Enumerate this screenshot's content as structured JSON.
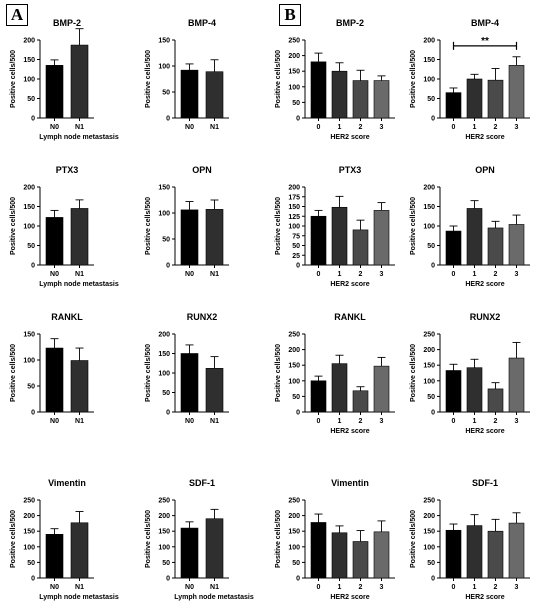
{
  "panel_labels": {
    "a": "A",
    "b": "B"
  },
  "colors": {
    "bar_dark": "#000000",
    "bar_mid": "#2f2f2f",
    "bar_gray": "#4a4a4a",
    "bar_light": "#6a6a6a",
    "axis": "#000000"
  },
  "chart_data": [
    {
      "id": "a-bmp2",
      "type": "bar",
      "title": "BMP-2",
      "xlabel": "Lymph node metastasis",
      "ylabel": "Positive cells/500",
      "categories": [
        "N0",
        "N1"
      ],
      "values": [
        135,
        187
      ],
      "errors": [
        14,
        42
      ],
      "ylim": [
        0,
        200
      ],
      "yticks": [
        0,
        50,
        100,
        150,
        200
      ]
    },
    {
      "id": "a-bmp4",
      "type": "bar",
      "title": "BMP-4",
      "xlabel": "",
      "ylabel": "Positive cells/500",
      "categories": [
        "N0",
        "N1"
      ],
      "values": [
        92,
        89
      ],
      "errors": [
        12,
        23
      ],
      "ylim": [
        0,
        150
      ],
      "yticks": [
        0,
        50,
        100,
        150
      ]
    },
    {
      "id": "b-bmp2",
      "type": "bar",
      "title": "BMP-2",
      "xlabel": "HER2 score",
      "ylabel": "Positive cells/500",
      "categories": [
        "0",
        "1",
        "2",
        "3"
      ],
      "values": [
        180,
        150,
        120,
        120
      ],
      "errors": [
        28,
        27,
        33,
        15
      ],
      "ylim": [
        0,
        250
      ],
      "yticks": [
        0,
        50,
        100,
        150,
        200,
        250
      ]
    },
    {
      "id": "b-bmp4",
      "type": "bar",
      "title": "BMP-4",
      "xlabel": "HER2 score",
      "ylabel": "Positive cells/500",
      "categories": [
        "0",
        "1",
        "2",
        "3"
      ],
      "values": [
        65,
        100,
        97,
        135
      ],
      "errors": [
        12,
        12,
        30,
        22
      ],
      "ylim": [
        0,
        200
      ],
      "yticks": [
        0,
        50,
        100,
        150,
        200
      ],
      "annotation": {
        "text": "**",
        "from": 0,
        "to": 3,
        "y": 185
      }
    },
    {
      "id": "a-ptx3",
      "type": "bar",
      "title": "PTX3",
      "xlabel": "Lymph node metastasis",
      "ylabel": "Positive cells/500",
      "categories": [
        "N0",
        "N1"
      ],
      "values": [
        122,
        145
      ],
      "errors": [
        18,
        22
      ],
      "ylim": [
        0,
        200
      ],
      "yticks": [
        0,
        50,
        100,
        150,
        200
      ]
    },
    {
      "id": "a-opn",
      "type": "bar",
      "title": "OPN",
      "xlabel": "",
      "ylabel": "Positive cells/500",
      "categories": [
        "N0",
        "N1"
      ],
      "values": [
        106,
        107
      ],
      "errors": [
        16,
        18
      ],
      "ylim": [
        0,
        150
      ],
      "yticks": [
        0,
        50,
        100,
        150
      ]
    },
    {
      "id": "b-ptx3",
      "type": "bar",
      "title": "PTX3",
      "xlabel": "HER2 score",
      "ylabel": "Positive cells/500",
      "categories": [
        "0",
        "1",
        "2",
        "3"
      ],
      "values": [
        125,
        148,
        90,
        140
      ],
      "errors": [
        15,
        28,
        25,
        20
      ],
      "ylim": [
        0,
        200
      ],
      "yticks": [
        0,
        25,
        50,
        75,
        100,
        125,
        150,
        175,
        200
      ]
    },
    {
      "id": "b-opn",
      "type": "bar",
      "title": "OPN",
      "xlabel": "HER2 score",
      "ylabel": "Positive cells/500",
      "categories": [
        "0",
        "1",
        "2",
        "3"
      ],
      "values": [
        87,
        145,
        95,
        104
      ],
      "errors": [
        13,
        20,
        17,
        24
      ],
      "ylim": [
        0,
        200
      ],
      "yticks": [
        0,
        50,
        100,
        150,
        200
      ]
    },
    {
      "id": "a-rankl",
      "type": "bar",
      "title": "RANKL",
      "xlabel": "",
      "ylabel": "Positive cells/500",
      "categories": [
        "N0",
        "N1"
      ],
      "values": [
        123,
        99
      ],
      "errors": [
        18,
        24
      ],
      "ylim": [
        0,
        150
      ],
      "yticks": [
        0,
        50,
        100,
        150
      ]
    },
    {
      "id": "a-runx2",
      "type": "bar",
      "title": "RUNX2",
      "xlabel": "",
      "ylabel": "Positive cells/500",
      "categories": [
        "N0",
        "N1"
      ],
      "values": [
        150,
        112
      ],
      "errors": [
        22,
        30
      ],
      "ylim": [
        0,
        200
      ],
      "yticks": [
        0,
        50,
        100,
        150,
        200
      ]
    },
    {
      "id": "b-rankl",
      "type": "bar",
      "title": "RANKL",
      "xlabel": "HER2 score",
      "ylabel": "Positive cells/500",
      "categories": [
        "0",
        "1",
        "2",
        "3"
      ],
      "values": [
        100,
        155,
        68,
        147
      ],
      "errors": [
        15,
        27,
        13,
        28
      ],
      "ylim": [
        0,
        250
      ],
      "yticks": [
        0,
        50,
        100,
        150,
        200,
        250
      ]
    },
    {
      "id": "b-runx2",
      "type": "bar",
      "title": "RUNX2",
      "xlabel": "HER2 score",
      "ylabel": "Positive cells/500",
      "categories": [
        "0",
        "1",
        "2",
        "3"
      ],
      "values": [
        133,
        142,
        74,
        173
      ],
      "errors": [
        20,
        27,
        20,
        50
      ],
      "ylim": [
        0,
        250
      ],
      "yticks": [
        0,
        50,
        100,
        150,
        200,
        250
      ]
    },
    {
      "id": "a-vimentin",
      "type": "bar",
      "title": "Vimentin",
      "xlabel": "Lymph node metastasis",
      "ylabel": "Positive cells/500",
      "categories": [
        "N0",
        "N1"
      ],
      "values": [
        140,
        177
      ],
      "errors": [
        18,
        36
      ],
      "ylim": [
        0,
        250
      ],
      "yticks": [
        0,
        50,
        100,
        150,
        200,
        250
      ]
    },
    {
      "id": "a-sdf1",
      "type": "bar",
      "title": "SDF-1",
      "xlabel": "Lymph node metastasis",
      "ylabel": "Positive cells/500",
      "categories": [
        "N0",
        "N1"
      ],
      "values": [
        160,
        190
      ],
      "errors": [
        20,
        30
      ],
      "ylim": [
        0,
        250
      ],
      "yticks": [
        0,
        50,
        100,
        150,
        200,
        250
      ]
    },
    {
      "id": "b-vimentin",
      "type": "bar",
      "title": "Vimentin",
      "xlabel": "HER2 score",
      "ylabel": "Positive cells/500",
      "categories": [
        "0",
        "1",
        "2",
        "3"
      ],
      "values": [
        178,
        145,
        117,
        148
      ],
      "errors": [
        27,
        22,
        35,
        35
      ],
      "ylim": [
        0,
        250
      ],
      "yticks": [
        0,
        50,
        100,
        150,
        200,
        250
      ]
    },
    {
      "id": "b-sdf1",
      "type": "bar",
      "title": "SDF-1",
      "xlabel": "HER2 score",
      "ylabel": "Positive cells/500",
      "categories": [
        "0",
        "1",
        "2",
        "3"
      ],
      "values": [
        153,
        168,
        150,
        176
      ],
      "errors": [
        20,
        35,
        38,
        33
      ],
      "ylim": [
        0,
        250
      ],
      "yticks": [
        0,
        50,
        100,
        150,
        200,
        250
      ]
    }
  ]
}
